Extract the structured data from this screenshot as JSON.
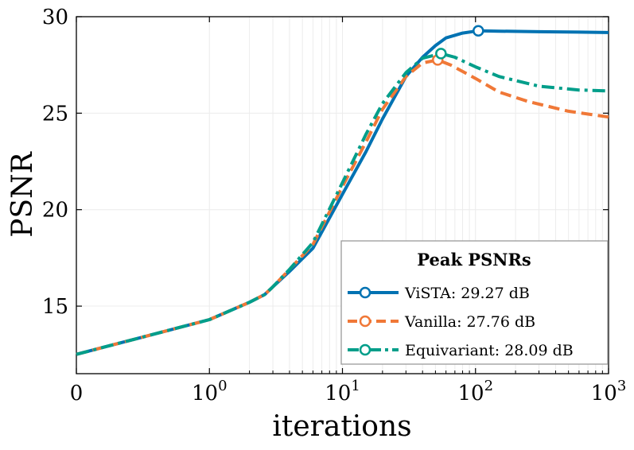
{
  "chart_data": {
    "type": "line",
    "xscale": "symlog",
    "linthresh": 1,
    "title": "",
    "xlabel": "iterations",
    "ylabel": "PSNR",
    "xlim": [
      0,
      1000
    ],
    "ylim": [
      11.5,
      30
    ],
    "grid": true,
    "x_ticks": [
      {
        "value": 0,
        "base": "0",
        "exp": ""
      },
      {
        "value": 1,
        "base": "10",
        "exp": "0"
      },
      {
        "value": 10,
        "base": "10",
        "exp": "1"
      },
      {
        "value": 100,
        "base": "10",
        "exp": "2"
      },
      {
        "value": 1000,
        "base": "10",
        "exp": "3"
      }
    ],
    "y_ticks": [
      15,
      20,
      25,
      30
    ],
    "legend": {
      "title": "Peak PSNRs",
      "placement": "lower right",
      "entries": [
        "ViSTA: 29.27 dB",
        "Vanilla: 27.76 dB",
        "Equivariant: 28.09 dB"
      ]
    },
    "series": [
      {
        "name": "ViSTA",
        "color": "#0072B2",
        "dash": "solid",
        "peak": {
          "x": 105,
          "y": 29.27
        },
        "points": [
          [
            0,
            12.5
          ],
          [
            0.5,
            13.4
          ],
          [
            1,
            14.3
          ],
          [
            2,
            15.2
          ],
          [
            2.6,
            15.6
          ],
          [
            3,
            16.0
          ],
          [
            4,
            16.8
          ],
          [
            6,
            18.0
          ],
          [
            10,
            20.8
          ],
          [
            15,
            23.0
          ],
          [
            20,
            24.7
          ],
          [
            30,
            26.9
          ],
          [
            40,
            27.9
          ],
          [
            50,
            28.5
          ],
          [
            60,
            28.9
          ],
          [
            80,
            29.15
          ],
          [
            105,
            29.27
          ],
          [
            150,
            29.25
          ],
          [
            300,
            29.22
          ],
          [
            600,
            29.2
          ],
          [
            1000,
            29.18
          ]
        ]
      },
      {
        "name": "Vanilla",
        "color": "#F07837",
        "dash": "dashed",
        "peak": {
          "x": 52,
          "y": 27.76
        },
        "points": [
          [
            0,
            12.5
          ],
          [
            0.5,
            13.4
          ],
          [
            1,
            14.3
          ],
          [
            2,
            15.2
          ],
          [
            2.6,
            15.6
          ],
          [
            3,
            16.0
          ],
          [
            4,
            16.9
          ],
          [
            6,
            18.2
          ],
          [
            10,
            21.2
          ],
          [
            15,
            23.5
          ],
          [
            20,
            25.2
          ],
          [
            30,
            26.9
          ],
          [
            40,
            27.6
          ],
          [
            52,
            27.76
          ],
          [
            65,
            27.5
          ],
          [
            100,
            26.8
          ],
          [
            150,
            26.1
          ],
          [
            250,
            25.6
          ],
          [
            500,
            25.1
          ],
          [
            1000,
            24.8
          ]
        ]
      },
      {
        "name": "Equivariant",
        "color": "#009E8A",
        "dash": "dashdot",
        "peak": {
          "x": 55,
          "y": 28.09
        },
        "points": [
          [
            0,
            12.5
          ],
          [
            0.5,
            13.4
          ],
          [
            1,
            14.3
          ],
          [
            2,
            15.2
          ],
          [
            2.6,
            15.6
          ],
          [
            3,
            16.0
          ],
          [
            4,
            16.9
          ],
          [
            6,
            18.3
          ],
          [
            10,
            21.4
          ],
          [
            15,
            23.9
          ],
          [
            20,
            25.5
          ],
          [
            30,
            27.1
          ],
          [
            40,
            27.85
          ],
          [
            55,
            28.09
          ],
          [
            70,
            27.9
          ],
          [
            100,
            27.4
          ],
          [
            150,
            26.9
          ],
          [
            300,
            26.4
          ],
          [
            600,
            26.2
          ],
          [
            1000,
            26.15
          ]
        ]
      }
    ]
  }
}
